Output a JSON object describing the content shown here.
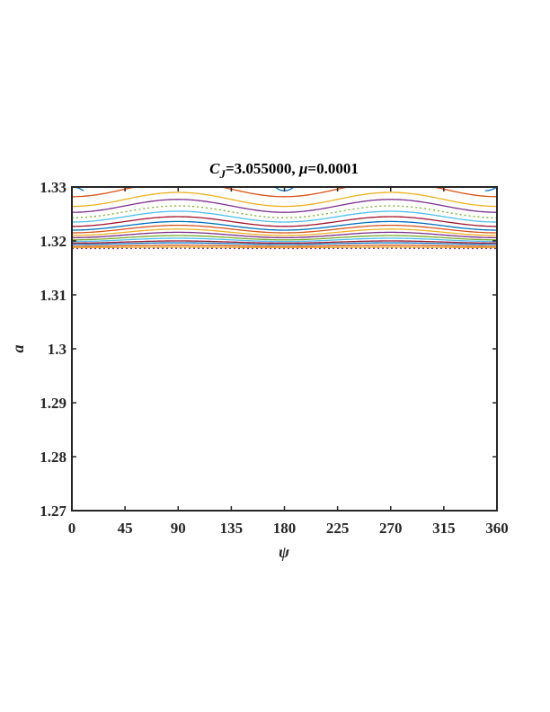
{
  "chart_data": {
    "type": "line",
    "title_parts": {
      "c_letter": "C",
      "c_subscript": "J",
      "c_value": "=3.055000,  ",
      "mu_symbol": "μ",
      "mu_value": "=0.0001"
    },
    "xlabel": "ψ",
    "ylabel": "a",
    "xlim": [
      0,
      360
    ],
    "ylim": [
      1.27,
      1.33
    ],
    "xticks": [
      0,
      45,
      90,
      135,
      180,
      225,
      270,
      315,
      360
    ],
    "xtick_labels": [
      "0",
      "45",
      "90",
      "135",
      "180",
      "225",
      "270",
      "315",
      "360"
    ],
    "yticks": [
      1.27,
      1.28,
      1.29,
      1.3,
      1.31,
      1.32,
      1.33
    ],
    "ytick_labels": [
      "1.27",
      "1.28",
      "1.29",
      "1.3",
      "1.31",
      "1.32",
      "1.33"
    ],
    "grid": false,
    "curve_model": "a = base + amp*cos(2*(psi - 90°)), psi in degrees",
    "series": [
      {
        "base": 1.3296,
        "amp": 0.0014,
        "color": "#D95319"
      },
      {
        "base": 1.3277,
        "amp": 0.0013,
        "color": "#EDB120"
      },
      {
        "base": 1.3265,
        "amp": 0.0012,
        "color": "#7E2F8E"
      },
      {
        "base": 1.3254,
        "amp": 0.0011,
        "color": "#77AC30",
        "dash": "dotted"
      },
      {
        "base": 1.3245,
        "amp": 0.001,
        "color": "#4DBEEE"
      },
      {
        "base": 1.3236,
        "amp": 0.0009,
        "color": "#A2142F"
      },
      {
        "base": 1.3228,
        "amp": 0.0008,
        "color": "#0072BD"
      },
      {
        "base": 1.3222,
        "amp": 0.0007,
        "color": "#D95319"
      },
      {
        "base": 1.3216,
        "amp": 0.0006,
        "color": "#EDB120"
      },
      {
        "base": 1.3211,
        "amp": 0.0005,
        "color": "#7E2F8E"
      },
      {
        "base": 1.3206,
        "amp": 0.0004,
        "color": "#77AC30"
      },
      {
        "base": 1.3202,
        "amp": 0.0003,
        "color": "#4DBEEE"
      },
      {
        "base": 1.3198,
        "amp": 0.0002,
        "color": "#A2142F"
      },
      {
        "base": 1.3195,
        "amp": 0.00015,
        "color": "#0072BD"
      },
      {
        "base": 1.3191,
        "amp": 0.0001,
        "color": "#D95319"
      },
      {
        "base": 1.3188,
        "amp": 5e-05,
        "color": "#EDB120"
      },
      {
        "base": 1.3186,
        "amp": 2e-05,
        "color": "#7E2F8E",
        "dash": "dotted"
      }
    ],
    "corner_arcs": [
      {
        "psi_range": [
          0,
          10
        ],
        "a_range": [
          1.33,
          1.3293
        ],
        "color": "#0072BD"
      },
      {
        "psi_range": [
          350,
          360
        ],
        "a_range": [
          1.3293,
          1.33
        ],
        "color": "#0072BD"
      }
    ],
    "center_dip": {
      "psi": 180,
      "a": 1.3293,
      "color": "#0072BD"
    }
  }
}
